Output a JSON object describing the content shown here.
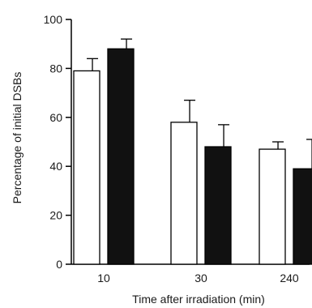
{
  "chart_data": {
    "type": "bar",
    "title": "",
    "xlabel": "Time after irradiation (min)",
    "ylabel": "Percentage of initial DSBs",
    "categories": [
      "10",
      "30",
      "240"
    ],
    "ylim": [
      0,
      100
    ],
    "yticks": [
      0,
      20,
      40,
      60,
      80,
      100
    ],
    "grid": false,
    "legend": "none",
    "series": [
      {
        "color": "#ffffff",
        "stroke": "#000000",
        "values": [
          79,
          58,
          47
        ],
        "errors": [
          5,
          9,
          3
        ]
      },
      {
        "color": "#111111",
        "stroke": "#000000",
        "values": [
          88,
          48,
          39
        ],
        "errors": [
          4,
          9,
          12
        ]
      }
    ]
  }
}
